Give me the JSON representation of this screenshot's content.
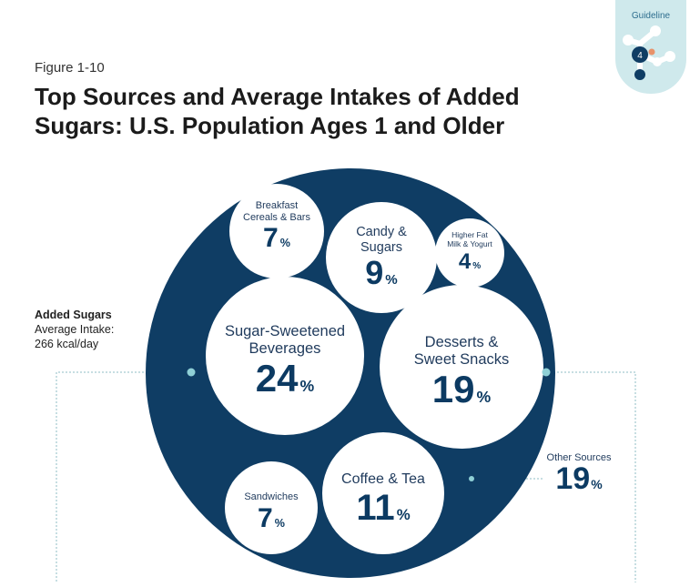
{
  "figure_label": "Figure 1-10",
  "title": "Top Sources and Average Intakes of Added Sugars: U.S. Population Ages 1 and Older",
  "guideline": {
    "label": "Guideline",
    "number": "4"
  },
  "side_note": {
    "heading": "Added Sugars",
    "line1": "Average Intake:",
    "line2": "266 kcal/day"
  },
  "colors": {
    "outer": "#0f3d64",
    "inner": "#ffffff",
    "text": "#1f3a5c",
    "accent": "#e8926a",
    "tab": "#cfe9ec"
  },
  "chart_data": {
    "type": "bubble",
    "title": "Top Sources and Average Intakes of Added Sugars: U.S. Population Ages 1 and Older",
    "total": {
      "label": "Added Sugars Average Intake",
      "value": 266,
      "unit": "kcal/day"
    },
    "categories": [
      "Sugar-Sweetened Beverages",
      "Desserts & Sweet Snacks",
      "Other Sources",
      "Coffee & Tea",
      "Candy & Sugars",
      "Breakfast Cereals & Bars",
      "Sandwiches",
      "Higher Fat Milk & Yogurt"
    ],
    "values": [
      24,
      19,
      19,
      11,
      9,
      7,
      7,
      4
    ],
    "unit": "%",
    "items": [
      {
        "name": "Sugar-Sweetened Beverages",
        "line1": "Sugar-Sweetened",
        "line2": "Beverages",
        "value": "24",
        "pct": "%"
      },
      {
        "name": "Desserts & Sweet Snacks",
        "line1": "Desserts &",
        "line2": "Sweet Snacks",
        "value": "19",
        "pct": "%"
      },
      {
        "name": "Coffee & Tea",
        "line1": "Coffee & Tea",
        "line2": "",
        "value": "11",
        "pct": "%"
      },
      {
        "name": "Candy & Sugars",
        "line1": "Candy &",
        "line2": "Sugars",
        "value": "9",
        "pct": "%"
      },
      {
        "name": "Breakfast Cereals & Bars",
        "line1": "Breakfast",
        "line2": "Cereals & Bars",
        "value": "7",
        "pct": "%"
      },
      {
        "name": "Sandwiches",
        "line1": "Sandwiches",
        "line2": "",
        "value": "7",
        "pct": "%"
      },
      {
        "name": "Higher Fat Milk & Yogurt",
        "line1": "Higher Fat",
        "line2": "Milk & Yogurt",
        "value": "4",
        "pct": "%"
      }
    ],
    "other": {
      "name": "Other Sources",
      "value": "19",
      "pct": "%"
    }
  }
}
